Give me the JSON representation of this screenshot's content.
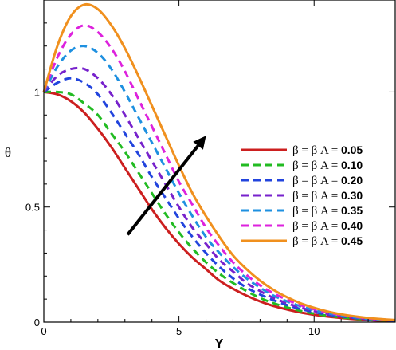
{
  "chart_data": {
    "type": "line",
    "title": "",
    "xlabel": "Y",
    "ylabel": "θ",
    "xlim": [
      0,
      13
    ],
    "ylim": [
      0,
      1.4
    ],
    "x_ticks": [
      0,
      5,
      10
    ],
    "x_tick_labels": [
      "0",
      "5",
      "10"
    ],
    "y_ticks": [
      0,
      0.5,
      1
    ],
    "y_tick_labels": [
      "0",
      "0.5",
      "1"
    ],
    "grid": false,
    "legend_position": "right-middle",
    "legend_prefix": "β = β A = ",
    "arrow": {
      "from": [
        3.1,
        0.38
      ],
      "to": [
        6.0,
        0.81
      ]
    },
    "series": [
      {
        "name": "0.05",
        "color": "#cc1f1f",
        "style": "solid",
        "x": [
          0,
          0.5,
          1,
          1.5,
          2,
          2.5,
          3,
          3.5,
          4,
          4.5,
          5,
          5.5,
          6,
          6.5,
          7,
          7.5,
          8,
          8.5,
          9,
          9.5,
          10,
          10.5,
          11,
          11.5,
          12,
          12.5,
          13
        ],
        "y": [
          1.0,
          0.99,
          0.96,
          0.91,
          0.84,
          0.76,
          0.67,
          0.58,
          0.49,
          0.41,
          0.34,
          0.28,
          0.23,
          0.18,
          0.145,
          0.115,
          0.09,
          0.07,
          0.055,
          0.042,
          0.032,
          0.024,
          0.018,
          0.013,
          0.009,
          0.006,
          0.004
        ]
      },
      {
        "name": "0.10",
        "color": "#22bb22",
        "style": "dashed",
        "x": [
          0,
          0.5,
          1,
          1.5,
          2,
          2.5,
          3,
          3.5,
          4,
          4.5,
          5,
          5.5,
          6,
          6.5,
          7,
          7.5,
          8,
          8.5,
          9,
          9.5,
          10,
          10.5,
          11,
          11.5,
          12,
          12.5,
          13
        ],
        "y": [
          1.0,
          1.0,
          0.99,
          0.95,
          0.9,
          0.82,
          0.74,
          0.65,
          0.56,
          0.47,
          0.39,
          0.32,
          0.26,
          0.21,
          0.17,
          0.135,
          0.105,
          0.082,
          0.064,
          0.049,
          0.037,
          0.028,
          0.021,
          0.015,
          0.011,
          0.008,
          0.005
        ]
      },
      {
        "name": "0.20",
        "color": "#2244dd",
        "style": "dashed",
        "x": [
          0,
          0.5,
          1,
          1.5,
          2,
          2.5,
          3,
          3.5,
          4,
          4.5,
          5,
          5.5,
          6,
          6.5,
          7,
          7.5,
          8,
          8.5,
          9,
          9.5,
          10,
          10.5,
          11,
          11.5,
          12,
          12.5,
          13
        ],
        "y": [
          1.0,
          1.04,
          1.06,
          1.04,
          0.99,
          0.91,
          0.82,
          0.73,
          0.63,
          0.54,
          0.45,
          0.37,
          0.3,
          0.24,
          0.19,
          0.15,
          0.12,
          0.095,
          0.074,
          0.057,
          0.044,
          0.033,
          0.025,
          0.018,
          0.013,
          0.009,
          0.006
        ]
      },
      {
        "name": "0.30",
        "color": "#7722cc",
        "style": "dashed",
        "x": [
          0,
          0.5,
          1,
          1.5,
          2,
          2.5,
          3,
          3.5,
          4,
          4.5,
          5,
          5.5,
          6,
          6.5,
          7,
          7.5,
          8,
          8.5,
          9,
          9.5,
          10,
          10.5,
          11,
          11.5,
          12,
          12.5,
          13
        ],
        "y": [
          1.0,
          1.07,
          1.1,
          1.1,
          1.06,
          0.99,
          0.9,
          0.8,
          0.7,
          0.6,
          0.5,
          0.41,
          0.34,
          0.27,
          0.22,
          0.17,
          0.135,
          0.105,
          0.082,
          0.063,
          0.048,
          0.036,
          0.027,
          0.02,
          0.014,
          0.01,
          0.007
        ]
      },
      {
        "name": "0.35",
        "color": "#1e90e0",
        "style": "dashed",
        "x": [
          0,
          0.5,
          1,
          1.5,
          2,
          2.5,
          3,
          3.5,
          4,
          4.5,
          5,
          5.5,
          6,
          6.5,
          7,
          7.5,
          8,
          8.5,
          9,
          9.5,
          10,
          10.5,
          11,
          11.5,
          12,
          12.5,
          13
        ],
        "y": [
          1.0,
          1.11,
          1.18,
          1.2,
          1.17,
          1.1,
          1.0,
          0.89,
          0.78,
          0.67,
          0.56,
          0.46,
          0.37,
          0.3,
          0.24,
          0.19,
          0.15,
          0.115,
          0.09,
          0.069,
          0.052,
          0.039,
          0.029,
          0.021,
          0.015,
          0.011,
          0.008
        ]
      },
      {
        "name": "0.40",
        "color": "#dd22dd",
        "style": "dashed",
        "x": [
          0,
          0.5,
          1,
          1.5,
          2,
          2.5,
          3,
          3.5,
          4,
          4.5,
          5,
          5.5,
          6,
          6.5,
          7,
          7.5,
          8,
          8.5,
          9,
          9.5,
          10,
          10.5,
          11,
          11.5,
          12,
          12.5,
          13
        ],
        "y": [
          1.0,
          1.15,
          1.25,
          1.29,
          1.26,
          1.19,
          1.09,
          0.97,
          0.85,
          0.73,
          0.61,
          0.51,
          0.41,
          0.33,
          0.26,
          0.205,
          0.16,
          0.125,
          0.097,
          0.074,
          0.056,
          0.042,
          0.031,
          0.023,
          0.016,
          0.012,
          0.008
        ]
      },
      {
        "name": "0.45",
        "color": "#f0901e",
        "style": "solid",
        "x": [
          0,
          0.5,
          1,
          1.5,
          2,
          2.5,
          3,
          3.5,
          4,
          4.5,
          5,
          5.5,
          6,
          6.5,
          7,
          7.5,
          8,
          8.5,
          9,
          9.5,
          10,
          10.5,
          11,
          11.5,
          12,
          12.5,
          13
        ],
        "y": [
          1.0,
          1.2,
          1.33,
          1.38,
          1.36,
          1.29,
          1.19,
          1.07,
          0.94,
          0.81,
          0.68,
          0.56,
          0.46,
          0.37,
          0.29,
          0.23,
          0.18,
          0.14,
          0.108,
          0.082,
          0.062,
          0.046,
          0.034,
          0.025,
          0.018,
          0.013,
          0.009
        ]
      }
    ]
  }
}
